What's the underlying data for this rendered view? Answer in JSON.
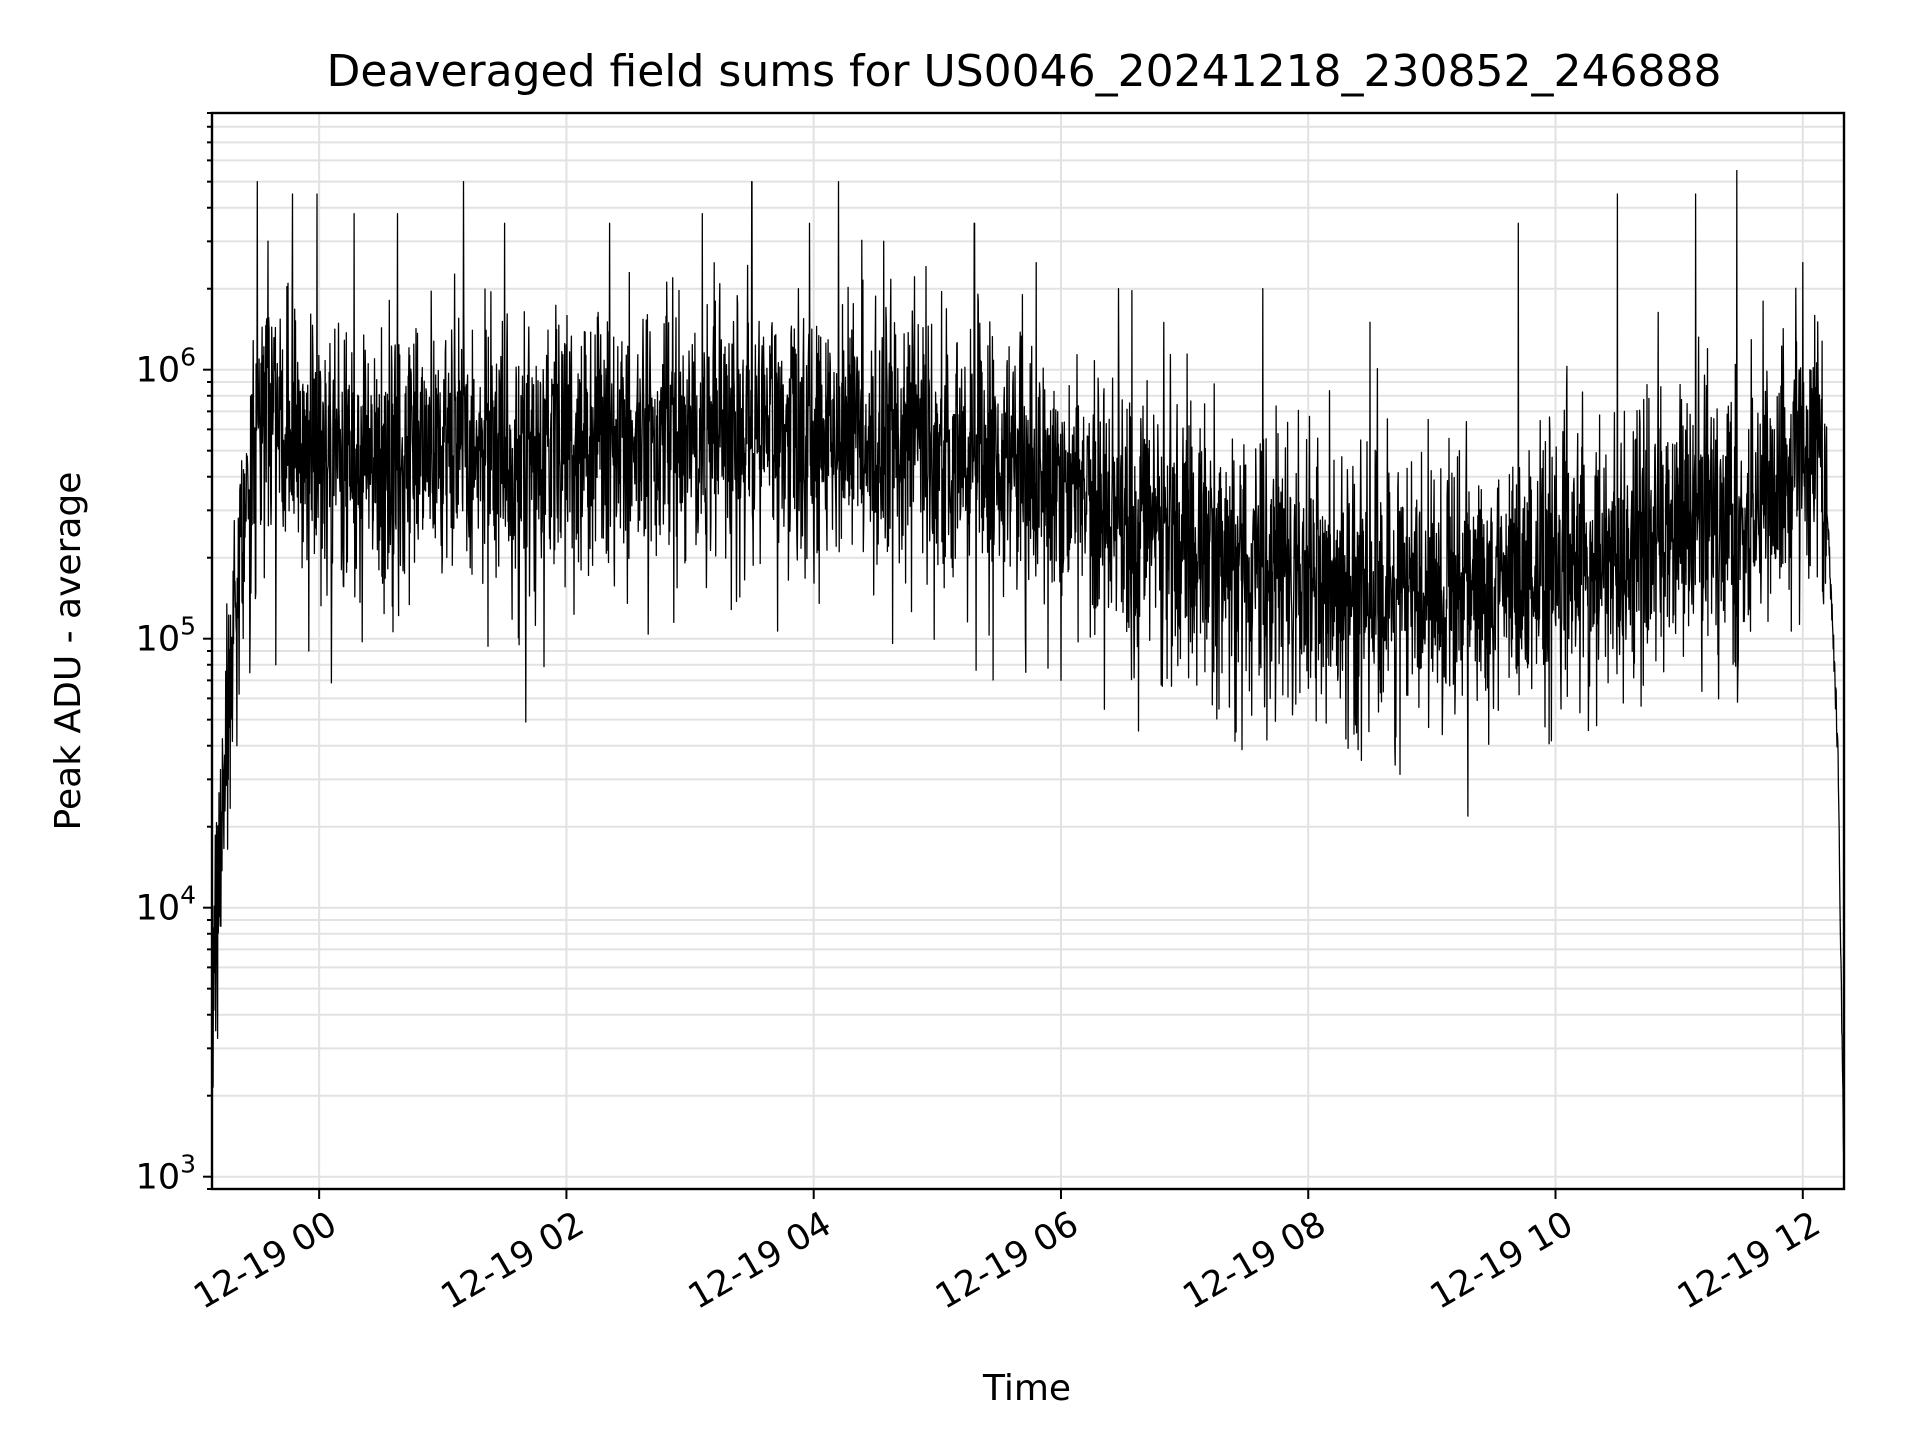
{
  "chart_data": {
    "type": "line",
    "title": "Deaveraged field sums for US0046_20241218_230852_246888",
    "xlabel": "Time",
    "ylabel": "Peak ADU - average",
    "yscale": "log",
    "ylim": [
      900,
      9000000
    ],
    "xlim": [
      "12-18 23:08",
      "12-19 12:20"
    ],
    "grid": true,
    "legend": "none",
    "line_color": "#000000",
    "grid_color": "#e2e2e2",
    "x_ticks": [
      {
        "t": "12-19 00:00",
        "label": "12-19 00"
      },
      {
        "t": "12-19 02:00",
        "label": "12-19 02"
      },
      {
        "t": "12-19 04:00",
        "label": "12-19 04"
      },
      {
        "t": "12-19 06:00",
        "label": "12-19 06"
      },
      {
        "t": "12-19 08:00",
        "label": "12-19 08"
      },
      {
        "t": "12-19 10:00",
        "label": "12-19 10"
      },
      {
        "t": "12-19 12:00",
        "label": "12-19 12"
      }
    ],
    "y_ticks": [
      {
        "value": 1000,
        "base": "10",
        "exp": "3"
      },
      {
        "value": 10000,
        "base": "10",
        "exp": "4"
      },
      {
        "value": 100000,
        "base": "10",
        "exp": "5"
      },
      {
        "value": 1000000,
        "base": "10",
        "exp": "6"
      }
    ],
    "series": [
      {
        "noise_dex": 0.42,
        "profile": [
          {
            "t": "12-18 23:08",
            "value": 8000
          },
          {
            "t": "12-18 23:12",
            "value": 20000
          },
          {
            "t": "12-18 23:16",
            "value": 60000
          },
          {
            "t": "12-18 23:22",
            "value": 250000
          },
          {
            "t": "12-18 23:30",
            "value": 650000
          },
          {
            "t": "12-18 23:45",
            "value": 550000
          },
          {
            "t": "12-19 00:00",
            "value": 500000
          },
          {
            "t": "12-19 01:00",
            "value": 480000
          },
          {
            "t": "12-19 02:00",
            "value": 520000
          },
          {
            "t": "12-19 03:00",
            "value": 560000
          },
          {
            "t": "12-19 04:00",
            "value": 560000
          },
          {
            "t": "12-19 05:00",
            "value": 520000
          },
          {
            "t": "12-19 06:00",
            "value": 380000
          },
          {
            "t": "12-19 06:30",
            "value": 300000
          },
          {
            "t": "12-19 07:10",
            "value": 230000
          },
          {
            "t": "12-19 07:30",
            "value": 170000
          },
          {
            "t": "12-19 08:00",
            "value": 160000
          },
          {
            "t": "12-19 09:00",
            "value": 150000
          },
          {
            "t": "12-19 09:50",
            "value": 160000
          },
          {
            "t": "12-19 10:30",
            "value": 230000
          },
          {
            "t": "12-19 11:30",
            "value": 280000
          },
          {
            "t": "12-19 12:05",
            "value": 550000
          },
          {
            "t": "12-19 12:12",
            "value": 300000
          },
          {
            "t": "12-19 12:17",
            "value": 40000
          },
          {
            "t": "12-19 12:20",
            "value": 1000
          }
        ],
        "peaks": [
          {
            "t": "12-18 23:30",
            "value": 5000000
          },
          {
            "t": "12-18 23:47",
            "value": 4500000
          },
          {
            "t": "12-18 23:59",
            "value": 4500000
          },
          {
            "t": "12-19 00:17",
            "value": 3800000
          },
          {
            "t": "12-19 00:38",
            "value": 3800000
          },
          {
            "t": "12-19 01:10",
            "value": 5000000
          },
          {
            "t": "12-19 01:30",
            "value": 3500000
          },
          {
            "t": "12-19 02:21",
            "value": 3500000
          },
          {
            "t": "12-19 03:06",
            "value": 3800000
          },
          {
            "t": "12-19 03:30",
            "value": 5000000
          },
          {
            "t": "12-19 03:58",
            "value": 3500000
          },
          {
            "t": "12-19 04:12",
            "value": 5000000
          },
          {
            "t": "12-19 04:34",
            "value": 3000000
          },
          {
            "t": "12-19 05:18",
            "value": 3500000
          },
          {
            "t": "12-19 05:48",
            "value": 2500000
          },
          {
            "t": "12-19 06:28",
            "value": 2000000
          },
          {
            "t": "12-19 07:38",
            "value": 2000000
          },
          {
            "t": "12-19 08:30",
            "value": 1500000
          },
          {
            "t": "12-19 09:42",
            "value": 3500000
          },
          {
            "t": "12-19 10:30",
            "value": 4500000
          },
          {
            "t": "12-19 11:08",
            "value": 4500000
          },
          {
            "t": "12-19 11:28",
            "value": 5500000
          },
          {
            "t": "12-19 12:00",
            "value": 2500000
          }
        ],
        "dips": [
          {
            "t": "12-18 23:20",
            "value": 40000
          },
          {
            "t": "12-18 23:39",
            "value": 80000
          },
          {
            "t": "12-18 23:55",
            "value": 90000
          },
          {
            "t": "12-19 01:37",
            "value": 95000
          },
          {
            "t": "12-19 05:43",
            "value": 75000
          },
          {
            "t": "12-19 06:00",
            "value": 70000
          },
          {
            "t": "12-19 07:25",
            "value": 45000
          },
          {
            "t": "12-19 07:40",
            "value": 42000
          },
          {
            "t": "12-19 08:42",
            "value": 40000
          },
          {
            "t": "12-19 09:05",
            "value": 44000
          },
          {
            "t": "12-19 09:55",
            "value": 47000
          }
        ]
      }
    ]
  }
}
